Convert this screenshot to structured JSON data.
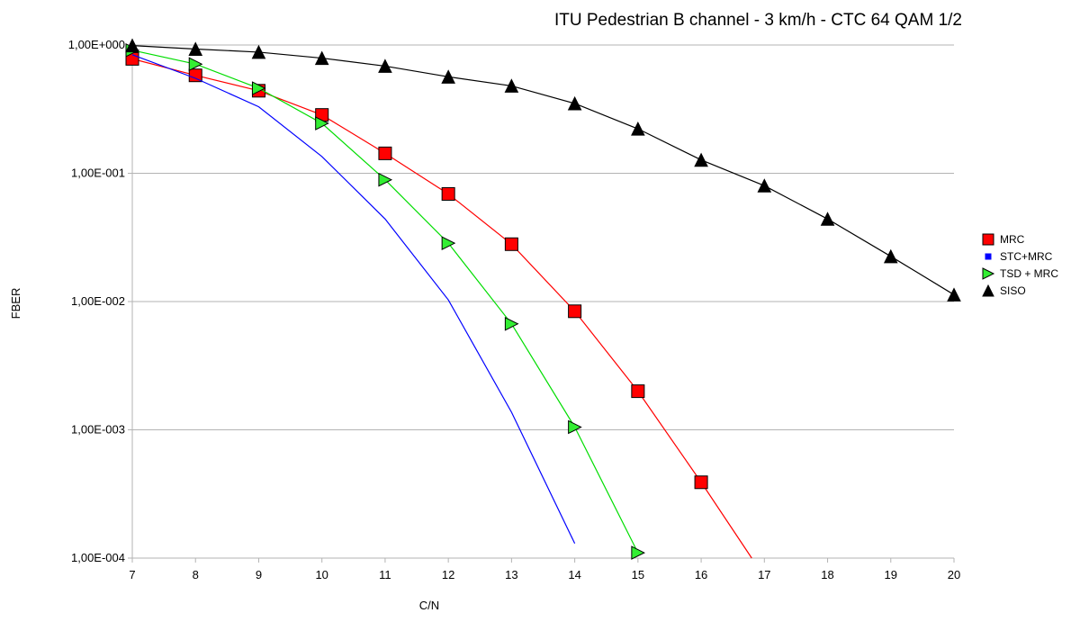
{
  "chart_data": {
    "type": "line",
    "title": "ITU Pedestrian B channel - 3 km/h - CTC 64 QAM 1/2",
    "xlabel": "C/N",
    "ylabel": "FBER",
    "xlim": [
      7,
      20
    ],
    "ylim": [
      0.0001,
      1
    ],
    "y_scale": "log",
    "grid": "horizontal",
    "legend_position": "right",
    "x_ticks": [
      "7",
      "8",
      "9",
      "10",
      "11",
      "12",
      "13",
      "14",
      "15",
      "16",
      "17",
      "18",
      "19",
      "20"
    ],
    "y_ticks": [
      {
        "value": 1,
        "label": "1,00E+000"
      },
      {
        "value": 0.1,
        "label": "1,00E-001"
      },
      {
        "value": 0.01,
        "label": "1,00E-002"
      },
      {
        "value": 0.001,
        "label": "1,00E-003"
      },
      {
        "value": 0.0001,
        "label": "1,00E-004"
      }
    ],
    "series": [
      {
        "name": "MRC",
        "color": "#ff0000",
        "marker": "square",
        "marker_fill": "#ff0000",
        "x": [
          7,
          8,
          9,
          10,
          11,
          12,
          13,
          14,
          15,
          16,
          16.8
        ],
        "y": [
          0.78,
          0.58,
          0.44,
          0.285,
          0.143,
          0.069,
          0.028,
          0.0084,
          0.002,
          0.00039,
          0.0001
        ],
        "marker_count": 10
      },
      {
        "name": "STC+MRC",
        "color": "#0000ff",
        "marker": "small-square",
        "marker_fill": "#0000ff",
        "x": [
          7,
          8,
          9,
          10,
          11,
          12,
          13,
          14
        ],
        "y": [
          0.84,
          0.55,
          0.33,
          0.135,
          0.044,
          0.0103,
          0.00137,
          0.00013
        ],
        "marker_count": 0
      },
      {
        "name": "TSD + MRC",
        "color": "#00dd00",
        "marker": "triangle-right",
        "marker_fill": "#33ee33",
        "x": [
          7,
          8,
          9,
          10,
          11,
          12,
          13,
          14,
          15
        ],
        "y": [
          0.91,
          0.71,
          0.46,
          0.245,
          0.089,
          0.0285,
          0.0067,
          0.00105,
          0.00011
        ],
        "marker_count": 9
      },
      {
        "name": "SISO",
        "color": "#000000",
        "marker": "triangle-up",
        "marker_fill": "#000000",
        "x": [
          7,
          8,
          9,
          10,
          11,
          12,
          13,
          14,
          15,
          16,
          17,
          18,
          19,
          20
        ],
        "y": [
          0.99,
          0.93,
          0.88,
          0.79,
          0.685,
          0.565,
          0.48,
          0.35,
          0.222,
          0.127,
          0.08,
          0.044,
          0.0225,
          0.0113
        ],
        "marker_count": 14
      }
    ]
  }
}
